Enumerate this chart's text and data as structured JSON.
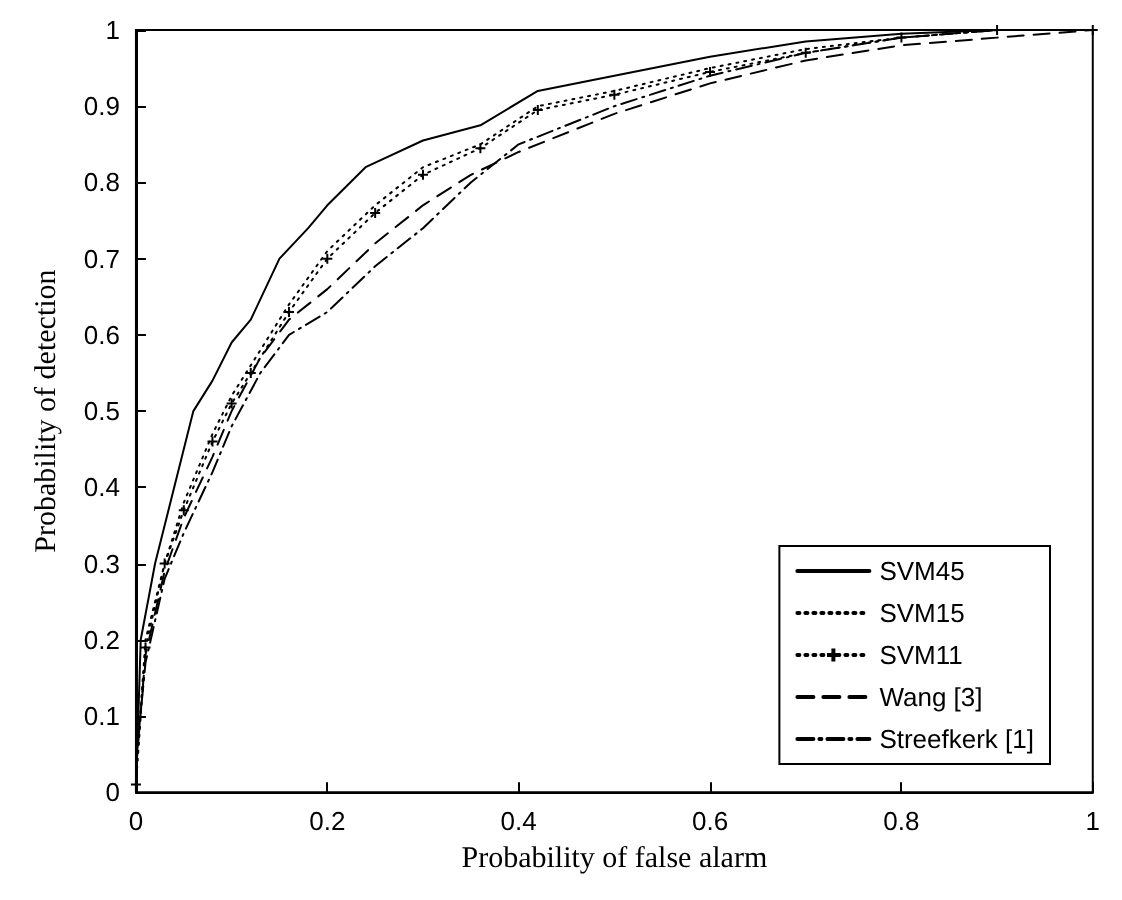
{
  "chart_data": {
    "type": "line",
    "xlabel": "Probability of false alarm",
    "ylabel": "Probability of detection",
    "xlim": [
      0,
      1
    ],
    "ylim": [
      0,
      1
    ],
    "xticks": [
      0,
      0.2,
      0.4,
      0.6,
      0.8,
      1
    ],
    "yticks": [
      0,
      0.1,
      0.2,
      0.3,
      0.4,
      0.5,
      0.6,
      0.7,
      0.8,
      0.9,
      1
    ],
    "grid": false,
    "legend": "bottom right",
    "marker": "none",
    "series": [
      {
        "name": "SVM45",
        "color": "#000000",
        "line_style": "solid",
        "x": [
          0,
          0.005,
          0.02,
          0.04,
          0.06,
          0.08,
          0.1,
          0.12,
          0.15,
          0.18,
          0.2,
          0.24,
          0.3,
          0.36,
          0.42,
          0.5,
          0.6,
          0.7,
          0.8,
          0.9,
          1
        ],
        "values": [
          0,
          0.2,
          0.3,
          0.4,
          0.5,
          0.54,
          0.59,
          0.62,
          0.7,
          0.74,
          0.77,
          0.82,
          0.855,
          0.875,
          0.92,
          0.94,
          0.965,
          0.985,
          0.995,
          1,
          1
        ]
      },
      {
        "name": "SVM15",
        "color": "#000000",
        "line_style": "dotted",
        "x": [
          0,
          0.01,
          0.03,
          0.05,
          0.08,
          0.1,
          0.12,
          0.16,
          0.2,
          0.25,
          0.3,
          0.36,
          0.42,
          0.5,
          0.6,
          0.7,
          0.8,
          0.9,
          1
        ],
        "values": [
          0.02,
          0.2,
          0.3,
          0.38,
          0.47,
          0.52,
          0.56,
          0.64,
          0.71,
          0.77,
          0.82,
          0.85,
          0.9,
          0.92,
          0.95,
          0.975,
          0.99,
          1,
          1
        ]
      },
      {
        "name": "SVM11",
        "color": "#000000",
        "line_style": "dotted",
        "marker": "cross",
        "x": [
          0,
          0.01,
          0.03,
          0.05,
          0.08,
          0.1,
          0.12,
          0.16,
          0.2,
          0.25,
          0.3,
          0.36,
          0.42,
          0.5,
          0.6,
          0.7,
          0.8,
          0.9,
          1
        ],
        "values": [
          0.01,
          0.19,
          0.3,
          0.37,
          0.46,
          0.51,
          0.55,
          0.63,
          0.7,
          0.76,
          0.81,
          0.845,
          0.895,
          0.915,
          0.945,
          0.97,
          0.99,
          1,
          1
        ]
      },
      {
        "name": "Wang [3]",
        "color": "#000000",
        "line_style": "dashed",
        "x": [
          0,
          0.01,
          0.03,
          0.05,
          0.08,
          0.1,
          0.13,
          0.16,
          0.2,
          0.25,
          0.3,
          0.35,
          0.4,
          0.5,
          0.6,
          0.7,
          0.8,
          0.9,
          1
        ],
        "values": [
          0.03,
          0.18,
          0.29,
          0.36,
          0.44,
          0.5,
          0.57,
          0.62,
          0.66,
          0.72,
          0.77,
          0.81,
          0.84,
          0.89,
          0.93,
          0.96,
          0.98,
          0.99,
          1
        ]
      },
      {
        "name": "Streefkerk [1]",
        "color": "#000000",
        "line_style": "dashdot",
        "x": [
          0,
          0.01,
          0.03,
          0.05,
          0.08,
          0.1,
          0.13,
          0.16,
          0.2,
          0.25,
          0.3,
          0.35,
          0.4,
          0.5,
          0.6,
          0.7,
          0.8,
          0.9,
          1
        ],
        "values": [
          0.04,
          0.17,
          0.28,
          0.34,
          0.42,
          0.48,
          0.55,
          0.6,
          0.63,
          0.69,
          0.74,
          0.8,
          0.85,
          0.9,
          0.94,
          0.97,
          0.99,
          1,
          1
        ]
      }
    ]
  }
}
